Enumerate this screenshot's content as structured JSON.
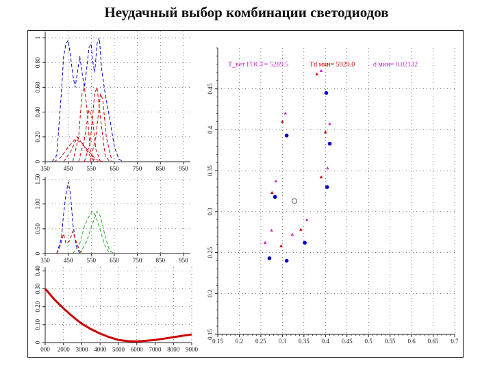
{
  "title": "Неудачный выбор комбинации светодиодов",
  "colors": {
    "blue": "#0000cc",
    "red": "#cc0000",
    "darkred": "#a01010",
    "green": "#22aa22",
    "magenta": "#cc22cc",
    "grid": "#222222"
  },
  "chart_data": [
    {
      "type": "line",
      "id": "spectra-top",
      "x_ticks": [
        "350",
        "450",
        "550",
        "650",
        "750",
        "850",
        "950"
      ],
      "y_ticks": [
        "0",
        "0.20",
        "0.40",
        "0.60",
        "0.80",
        "1"
      ],
      "xlim": [
        350,
        980
      ],
      "ylim": [
        0,
        1.05
      ],
      "series": [
        {
          "color": "blue",
          "dash": true,
          "points": [
            [
              380,
              0
            ],
            [
              400,
              0.05
            ],
            [
              420,
              0.55
            ],
            [
              430,
              0.85
            ],
            [
              440,
              0.95
            ],
            [
              450,
              0.98
            ],
            [
              460,
              0.85
            ],
            [
              470,
              0.7
            ],
            [
              480,
              0.6
            ],
            [
              490,
              0.72
            ],
            [
              500,
              0.85
            ],
            [
              510,
              0.72
            ],
            [
              520,
              0.6
            ],
            [
              530,
              0.75
            ],
            [
              540,
              0.92
            ],
            [
              550,
              0.95
            ],
            [
              555,
              0.82
            ],
            [
              565,
              0.72
            ],
            [
              575,
              0.95
            ],
            [
              585,
              1.0
            ],
            [
              595,
              0.75
            ],
            [
              610,
              0.55
            ],
            [
              630,
              0.35
            ],
            [
              650,
              0.12
            ],
            [
              670,
              0.02
            ],
            [
              690,
              0
            ]
          ]
        },
        {
          "color": "red",
          "dash": true,
          "points": [
            [
              470,
              0
            ],
            [
              495,
              0.2
            ],
            [
              510,
              0.55
            ],
            [
              520,
              0.6
            ],
            [
              530,
              0.45
            ],
            [
              545,
              0.1
            ],
            [
              560,
              0
            ]
          ]
        },
        {
          "color": "red",
          "dash": true,
          "points": [
            [
              495,
              0
            ],
            [
              520,
              0.18
            ],
            [
              540,
              0.42
            ],
            [
              555,
              0.35
            ],
            [
              570,
              0.1
            ],
            [
              590,
              0
            ]
          ]
        },
        {
          "color": "red",
          "dash": true,
          "points": [
            [
              520,
              0
            ],
            [
              545,
              0.15
            ],
            [
              565,
              0.55
            ],
            [
              575,
              0.6
            ],
            [
              590,
              0.35
            ],
            [
              610,
              0.05
            ],
            [
              630,
              0
            ]
          ]
        },
        {
          "color": "red",
          "dash": true,
          "points": [
            [
              545,
              0
            ],
            [
              570,
              0.2
            ],
            [
              590,
              0.55
            ],
            [
              600,
              0.5
            ],
            [
              615,
              0.2
            ],
            [
              640,
              0
            ]
          ]
        },
        {
          "color": "red",
          "dash": true,
          "points": [
            [
              390,
              0
            ],
            [
              420,
              0.04
            ],
            [
              450,
              0.12
            ],
            [
              480,
              0.18
            ],
            [
              510,
              0.15
            ],
            [
              540,
              0.08
            ],
            [
              570,
              0.02
            ],
            [
              600,
              0
            ]
          ]
        },
        {
          "color": "darkred",
          "dash": true,
          "points": [
            [
              430,
              0
            ],
            [
              460,
              0.08
            ],
            [
              490,
              0.2
            ],
            [
              520,
              0.12
            ],
            [
              550,
              0.03
            ],
            [
              580,
              0
            ]
          ]
        }
      ]
    },
    {
      "type": "line",
      "id": "spectra-mid",
      "x_ticks": [
        "350",
        "450",
        "550",
        "650",
        "750",
        "850",
        "950"
      ],
      "y_ticks": [
        "0",
        "0.50",
        "1.00",
        "1.50"
      ],
      "xlim": [
        350,
        980
      ],
      "ylim": [
        0,
        1.55
      ],
      "series": [
        {
          "color": "blue",
          "dash": true,
          "points": [
            [
              400,
              0
            ],
            [
              420,
              0.3
            ],
            [
              430,
              0.8
            ],
            [
              440,
              1.2
            ],
            [
              450,
              1.45
            ],
            [
              460,
              1.2
            ],
            [
              470,
              0.6
            ],
            [
              485,
              0.15
            ],
            [
              500,
              0
            ]
          ]
        },
        {
          "color": "green",
          "dash": true,
          "points": [
            [
              470,
              0
            ],
            [
              500,
              0.2
            ],
            [
              520,
              0.55
            ],
            [
              540,
              0.75
            ],
            [
              555,
              0.85
            ],
            [
              570,
              0.75
            ],
            [
              590,
              0.45
            ],
            [
              610,
              0.15
            ],
            [
              630,
              0
            ]
          ]
        },
        {
          "color": "green",
          "dash": true,
          "points": [
            [
              500,
              0
            ],
            [
              530,
              0.25
            ],
            [
              555,
              0.6
            ],
            [
              575,
              0.85
            ],
            [
              590,
              0.75
            ],
            [
              610,
              0.35
            ],
            [
              630,
              0.05
            ],
            [
              650,
              0
            ]
          ]
        },
        {
          "color": "red",
          "dash": true,
          "points": [
            [
              400,
              0
            ],
            [
              415,
              0.15
            ],
            [
              430,
              0.4
            ],
            [
              440,
              0.2
            ],
            [
              455,
              0.25
            ],
            [
              470,
              0.45
            ],
            [
              480,
              0.3
            ],
            [
              500,
              0.05
            ],
            [
              520,
              0
            ]
          ]
        }
      ]
    },
    {
      "type": "line",
      "id": "temperature-curve",
      "x_ticks": [
        "000",
        "2000",
        "3000",
        "4000",
        "5000",
        "6000",
        "7000",
        "8000",
        "9000"
      ],
      "y_ticks": [
        "0",
        "0.10",
        "0.20",
        "0.30",
        "0.40"
      ],
      "xlim": [
        1000,
        9000
      ],
      "ylim": [
        0,
        0.42
      ],
      "series": [
        {
          "color": "red",
          "dash": false,
          "points": [
            [
              1000,
              0.3
            ],
            [
              1500,
              0.24
            ],
            [
              2000,
              0.19
            ],
            [
              2500,
              0.145
            ],
            [
              3000,
              0.105
            ],
            [
              3500,
              0.075
            ],
            [
              4000,
              0.05
            ],
            [
              4500,
              0.03
            ],
            [
              5000,
              0.015
            ],
            [
              5500,
              0.008
            ],
            [
              6000,
              0.007
            ],
            [
              6500,
              0.01
            ],
            [
              7000,
              0.015
            ],
            [
              7500,
              0.022
            ],
            [
              8000,
              0.03
            ],
            [
              8500,
              0.038
            ],
            [
              9000,
              0.045
            ]
          ]
        }
      ]
    },
    {
      "type": "scatter",
      "id": "chromaticity",
      "annotations": {
        "t_gost": "T_вет ГОСТ= 5289.5",
        "td": "Td мин= 5929.0",
        "d": "d мин= 0.02132"
      },
      "x_ticks": [
        "0.15",
        "0.2",
        "0.25",
        "0.3",
        "0.35",
        "0.4",
        "0.45",
        "0.5",
        "0.55",
        "0.6",
        "0.65",
        "0.7"
      ],
      "y_ticks": [
        "0.15",
        "0.2",
        "0.25",
        "0.3",
        "0.35",
        "0.4",
        "0.45"
      ],
      "xlim": [
        0.15,
        0.7
      ],
      "ylim": [
        0.15,
        0.5
      ],
      "series": [
        {
          "name": "",
          "color": "blue",
          "marker": "dot",
          "points": [
            [
              0.402,
              0.445
            ],
            [
              0.31,
              0.393
            ],
            [
              0.41,
              0.383
            ],
            [
              0.404,
              0.33
            ],
            [
              0.283,
              0.318
            ],
            [
              0.352,
              0.262
            ],
            [
              0.27,
              0.243
            ],
            [
              0.31,
              0.24
            ]
          ]
        },
        {
          "name": "",
          "color": "magenta",
          "marker": "triangle",
          "points": [
            [
              0.39,
              0.472
            ],
            [
              0.307,
              0.42
            ],
            [
              0.41,
              0.407
            ],
            [
              0.405,
              0.353
            ],
            [
              0.285,
              0.337
            ],
            [
              0.357,
              0.29
            ],
            [
              0.275,
              0.277
            ],
            [
              0.323,
              0.272
            ],
            [
              0.26,
              0.262
            ]
          ]
        },
        {
          "name": "",
          "color": "red",
          "marker": "triangle",
          "points": [
            [
              0.38,
              0.468
            ],
            [
              0.3,
              0.41
            ],
            [
              0.4,
              0.397
            ],
            [
              0.39,
              0.342
            ],
            [
              0.276,
              0.323
            ],
            [
              0.343,
              0.278
            ],
            [
              0.297,
              0.258
            ]
          ]
        },
        {
          "name": "",
          "color": "grid",
          "marker": "circle-open",
          "points": [
            [
              0.328,
              0.313
            ]
          ]
        }
      ]
    }
  ]
}
